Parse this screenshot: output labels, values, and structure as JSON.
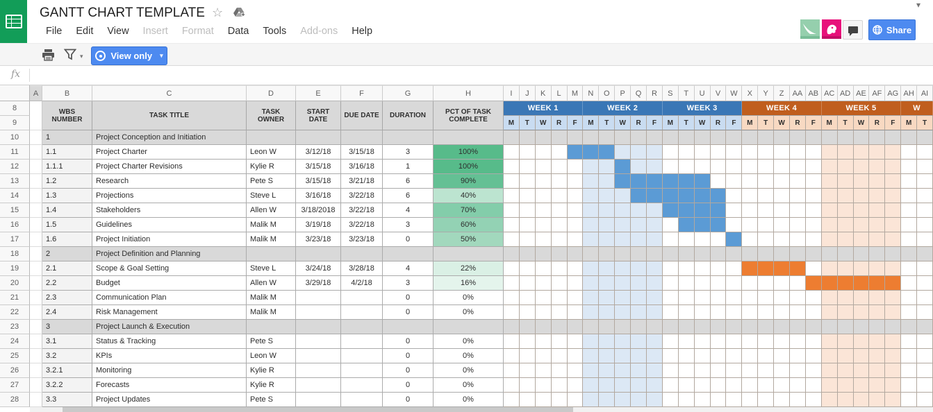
{
  "chrome": {
    "title": "GANTT CHART TEMPLATE",
    "menus": [
      {
        "label": "File",
        "enabled": true
      },
      {
        "label": "Edit",
        "enabled": true
      },
      {
        "label": "View",
        "enabled": true
      },
      {
        "label": "Insert",
        "enabled": false
      },
      {
        "label": "Format",
        "enabled": false
      },
      {
        "label": "Data",
        "enabled": true
      },
      {
        "label": "Tools",
        "enabled": true
      },
      {
        "label": "Add-ons",
        "enabled": false
      },
      {
        "label": "Help",
        "enabled": true
      }
    ],
    "toolbar": {
      "view_only_label": "View only"
    },
    "share_label": "Share",
    "formula_fx": "fx"
  },
  "colors": {
    "logo_green": "#129d58",
    "accent_blue": "#4d8af0",
    "week_blue": "#3a77b6",
    "week_orange": "#c05e1e",
    "day_blue": "#c9dcf1",
    "day_peach": "#f8d9c2",
    "bar_blue": "#5b9bd5",
    "bar_orange": "#ed7d31",
    "hl_blue": "#dce8f5",
    "hl_peach": "#fbe5d7",
    "section_gray": "#d9d9d9",
    "wbs_gray": "#f3f3f3",
    "pct_green_full": "#57bb8a",
    "avatar_green": "#95cfad",
    "avatar_pink": "#e8117b"
  },
  "sheet": {
    "left_col_letters": [
      "A",
      "B",
      "C",
      "D",
      "E",
      "F",
      "G",
      "H"
    ],
    "gantt_col_letters": [
      "I",
      "J",
      "K",
      "L",
      "M",
      "N",
      "O",
      "P",
      "Q",
      "R",
      "S",
      "T",
      "U",
      "V",
      "W",
      "X",
      "Y",
      "Z",
      "AA",
      "AB",
      "AC",
      "AD",
      "AE",
      "AF",
      "AG",
      "AH",
      "AI"
    ],
    "selected_col": "A",
    "header_row_numbers": [
      "8",
      "9"
    ],
    "table_headers": [
      "WBS NUMBER",
      "TASK TITLE",
      "TASK OWNER",
      "START DATE",
      "DUE DATE",
      "DURATION",
      "PCT OF TASK COMPLETE"
    ],
    "weeks": [
      {
        "label": "WEEK 1",
        "span": 5,
        "tone": "blue"
      },
      {
        "label": "WEEK 2",
        "span": 5,
        "tone": "blue"
      },
      {
        "label": "WEEK 3",
        "span": 5,
        "tone": "blue"
      },
      {
        "label": "WEEK 4",
        "span": 5,
        "tone": "orange"
      },
      {
        "label": "WEEK 5",
        "span": 5,
        "tone": "orange"
      },
      {
        "label": "W",
        "span": 2,
        "tone": "orange"
      }
    ],
    "days": [
      "M",
      "T",
      "W",
      "R",
      "F",
      "M",
      "T",
      "W",
      "R",
      "F",
      "M",
      "T",
      "W",
      "R",
      "F",
      "M",
      "T",
      "W",
      "R",
      "F",
      "M",
      "T",
      "W",
      "R",
      "F",
      "M",
      "T"
    ],
    "week2_highlight_cols": [
      6,
      10
    ],
    "week5_highlight_cols": [
      21,
      25
    ],
    "rows": [
      {
        "row": "10",
        "type": "section",
        "wbs": "1",
        "title": "Project Conception and Initiation"
      },
      {
        "row": "11",
        "type": "task",
        "wbs": "1.1",
        "title": "Project Charter",
        "owner": "Leon W",
        "start": "3/12/18",
        "due": "3/15/18",
        "duration": "3",
        "pct": "100%",
        "pct_bg": "#57bb8a",
        "bar": {
          "start": 5,
          "len": 3,
          "tone": "blue"
        }
      },
      {
        "row": "12",
        "type": "task",
        "wbs": "1.1.1",
        "title": "Project Charter Revisions",
        "owner": "Kylie R",
        "start": "3/15/18",
        "due": "3/16/18",
        "duration": "1",
        "pct": "100%",
        "pct_bg": "#57bb8a",
        "bar": {
          "start": 8,
          "len": 1,
          "tone": "blue"
        }
      },
      {
        "row": "13",
        "type": "task",
        "wbs": "1.2",
        "title": "Research",
        "owner": "Pete S",
        "start": "3/15/18",
        "due": "3/21/18",
        "duration": "6",
        "pct": "90%",
        "pct_bg": "#64c094",
        "bar": {
          "start": 8,
          "len": 6,
          "tone": "blue"
        }
      },
      {
        "row": "14",
        "type": "task",
        "wbs": "1.3",
        "title": "Projections",
        "owner": "Steve L",
        "start": "3/16/18",
        "due": "3/22/18",
        "duration": "6",
        "pct": "40%",
        "pct_bg": "#bce4d0",
        "bar": {
          "start": 9,
          "len": 6,
          "tone": "blue"
        }
      },
      {
        "row": "15",
        "type": "task",
        "wbs": "1.4",
        "title": "Stakeholders",
        "owner": "Allen W",
        "start": "3/18/2018",
        "due": "3/22/18",
        "duration": "4",
        "pct": "70%",
        "pct_bg": "#83cdaa",
        "bar": {
          "start": 11,
          "len": 4,
          "tone": "blue"
        }
      },
      {
        "row": "16",
        "type": "task",
        "wbs": "1.5",
        "title": "Guidelines",
        "owner": "Malik M",
        "start": "3/19/18",
        "due": "3/22/18",
        "duration": "3",
        "pct": "60%",
        "pct_bg": "#93d2b4",
        "bar": {
          "start": 12,
          "len": 3,
          "tone": "blue"
        }
      },
      {
        "row": "17",
        "type": "task",
        "wbs": "1.6",
        "title": "Project Initiation",
        "owner": "Malik M",
        "start": "3/23/18",
        "due": "3/23/18",
        "duration": "0",
        "pct": "50%",
        "pct_bg": "#a2d8bd",
        "bar": {
          "start": 15,
          "len": 1,
          "tone": "blue"
        }
      },
      {
        "row": "18",
        "type": "section",
        "wbs": "2",
        "title": "Project Definition and Planning"
      },
      {
        "row": "19",
        "type": "task",
        "wbs": "2.1",
        "title": "Scope & Goal Setting",
        "owner": "Steve L",
        "start": "3/24/18",
        "due": "3/28/18",
        "duration": "4",
        "pct": "22%",
        "pct_bg": "#daf0e5",
        "bar": {
          "start": 16,
          "len": 4,
          "tone": "orange"
        }
      },
      {
        "row": "20",
        "type": "task",
        "wbs": "2.2",
        "title": "Budget",
        "owner": "Allen W",
        "start": "3/29/18",
        "due": "4/2/18",
        "duration": "3",
        "pct": "16%",
        "pct_bg": "#e4f4ec",
        "bar": {
          "start": 20,
          "len": 6,
          "tone": "orange"
        }
      },
      {
        "row": "21",
        "type": "task",
        "wbs": "2.3",
        "title": "Communication Plan",
        "owner": "Malik M",
        "start": "",
        "due": "",
        "duration": "0",
        "pct": "0%",
        "pct_bg": "#ffffff"
      },
      {
        "row": "22",
        "type": "task",
        "wbs": "2.4",
        "title": "Risk Management",
        "owner": "Malik M",
        "start": "",
        "due": "",
        "duration": "0",
        "pct": "0%",
        "pct_bg": "#ffffff"
      },
      {
        "row": "23",
        "type": "section",
        "wbs": "3",
        "title": "Project Launch & Execution"
      },
      {
        "row": "24",
        "type": "task",
        "wbs": "3.1",
        "title": "Status & Tracking",
        "owner": "Pete S",
        "start": "",
        "due": "",
        "duration": "0",
        "pct": "0%",
        "pct_bg": "#ffffff"
      },
      {
        "row": "25",
        "type": "task",
        "wbs": "3.2",
        "title": "KPIs",
        "owner": "Leon W",
        "start": "",
        "due": "",
        "duration": "0",
        "pct": "0%",
        "pct_bg": "#ffffff"
      },
      {
        "row": "26",
        "type": "task",
        "wbs": "3.2.1",
        "title": "Monitoring",
        "owner": "Kylie R",
        "start": "",
        "due": "",
        "duration": "0",
        "pct": "0%",
        "pct_bg": "#ffffff"
      },
      {
        "row": "27",
        "type": "task",
        "wbs": "3.2.2",
        "title": "Forecasts",
        "owner": "Kylie R",
        "start": "",
        "due": "",
        "duration": "0",
        "pct": "0%",
        "pct_bg": "#ffffff"
      },
      {
        "row": "28",
        "type": "task",
        "wbs": "3.3",
        "title": "Project Updates",
        "owner": "Pete S",
        "start": "",
        "due": "",
        "duration": "0",
        "pct": "0%",
        "pct_bg": "#ffffff"
      }
    ]
  }
}
